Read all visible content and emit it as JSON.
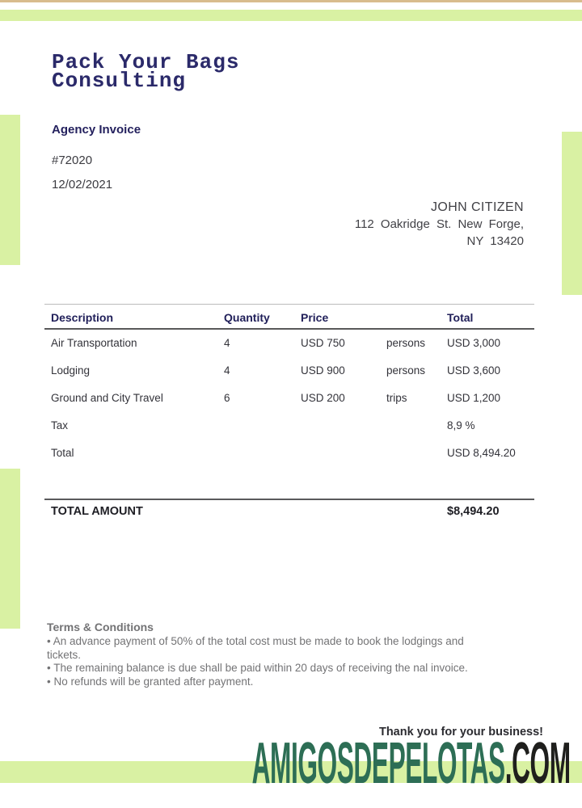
{
  "header": {
    "company_line1": "Pack Your Bags",
    "company_line2": "Consulting",
    "document_type": "Agency Invoice",
    "invoice_number": "#72020",
    "invoice_date": "12/02/2021"
  },
  "customer": {
    "name": "JOHN CITIZEN",
    "address_line1": "112 Oakridge St. New Forge,",
    "address_line2": "NY 13420"
  },
  "items_table": {
    "headers": {
      "description": "Description",
      "quantity": "Quantity",
      "price": "Price",
      "total": "Total"
    },
    "rows": [
      {
        "description": "Air Transportation",
        "quantity": "4",
        "price": "USD 750",
        "unit": "persons",
        "total": "USD 3,000"
      },
      {
        "description": "Lodging",
        "quantity": "4",
        "price": "USD 900",
        "unit": "persons",
        "total": "USD 3,600"
      },
      {
        "description": "Ground and City Travel",
        "quantity": "6",
        "price": "USD 200",
        "unit": "trips",
        "total": "USD 1,200"
      },
      {
        "description": "Tax",
        "quantity": "",
        "price": "",
        "unit": "",
        "total": "8,9 %"
      },
      {
        "description": "Total",
        "quantity": "",
        "price": "",
        "unit": "",
        "total": "USD 8,494.20"
      }
    ],
    "grand_total_label": "TOTAL AMOUNT",
    "grand_total_value": "$8,494.20"
  },
  "terms": {
    "heading": "Terms & Conditions",
    "bullets": [
      "• An advance payment of 50% of the total cost must be made to book the lodgings and tickets.",
      "• The remaining balance is due shall be paid within 20 days of receiving the nal invoice.",
      "• No refunds will be granted after payment."
    ]
  },
  "footer": {
    "thank_you": "Thank you for your business!",
    "watermark_name": "AMIGOSDEPELOTAS",
    "watermark_tld": ".COM"
  },
  "colors": {
    "accent_green": "#d9f1a3",
    "top_border_tan": "#d8bc8e",
    "brand_navy": "#2b2a6a",
    "watermark_teal": "#2d6e55",
    "watermark_dark": "#1f1f1d"
  }
}
